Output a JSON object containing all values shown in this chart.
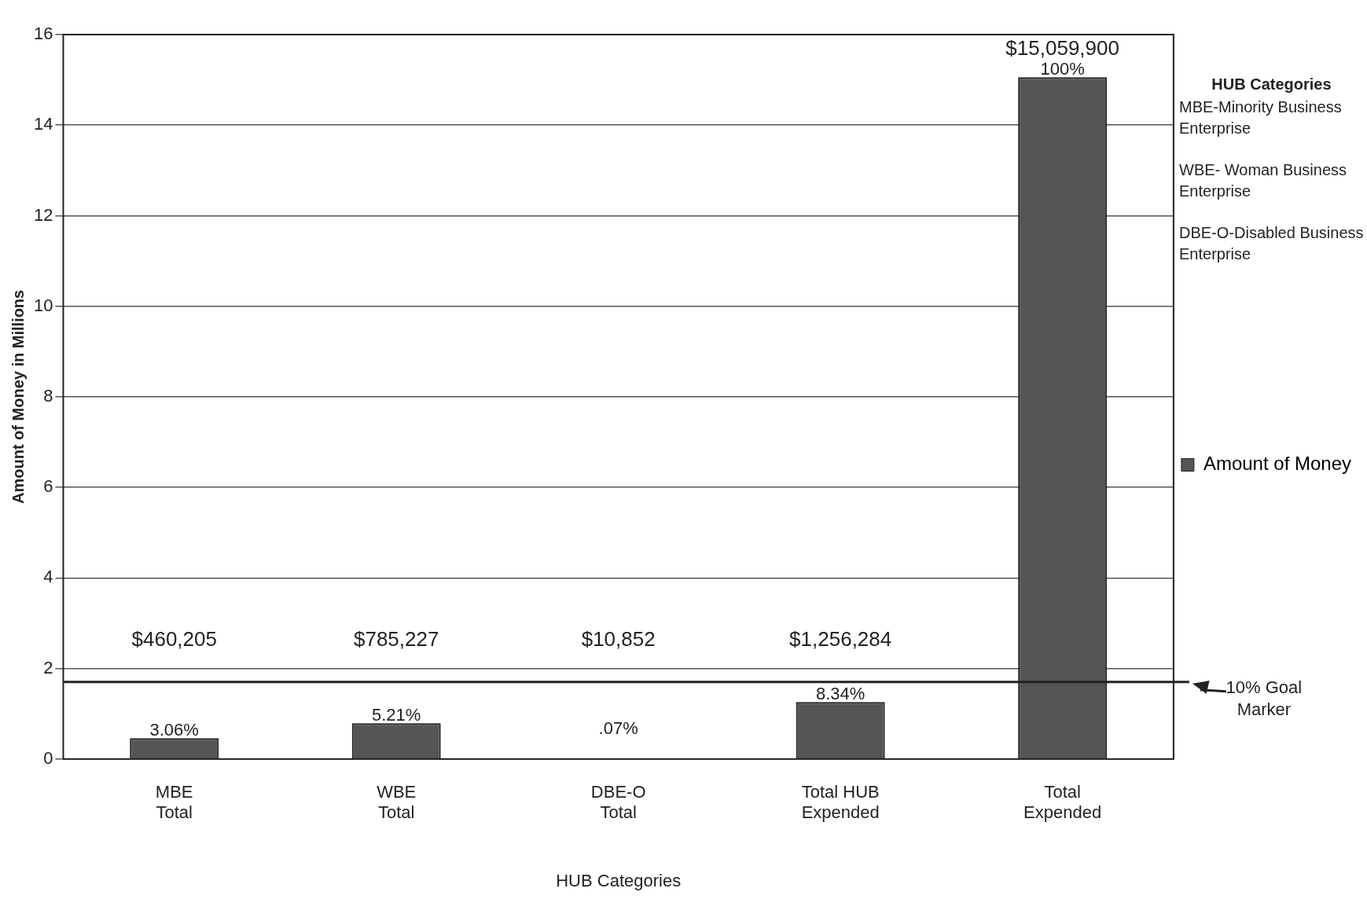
{
  "chart_data": {
    "type": "bar",
    "xlabel": "HUB Categories",
    "ylabel": "Amount of Money in Millions",
    "categories": [
      "MBE Total",
      "WBE Total",
      "DBE-O Total",
      "Total HUB Expended",
      "Total Expended"
    ],
    "series": [
      {
        "name": "Amount of Money",
        "color": "#555555",
        "values": [
          0.46,
          0.79,
          0.01,
          1.26,
          15.06
        ]
      }
    ],
    "ylim": [
      0,
      16
    ],
    "yticks": [
      0,
      2,
      4,
      6,
      8,
      10,
      12,
      14,
      16
    ],
    "grid": "y",
    "legend": "right",
    "ref_lines": [
      {
        "axis": "y",
        "value": 1.7,
        "label": "10% Goal Marker",
        "color": "#222222"
      }
    ],
    "annotations": [
      "$460,205",
      "$785,227",
      "$10,852",
      "$1,256,284",
      "$15,059,900",
      ".07%",
      {
        "text": "3.06%",
        "x": "MBE Total",
        "y": 0.46
      },
      {
        "text": "5.21%",
        "x": "WBE Total",
        "y": 0.79
      },
      {
        "text": "8.34%",
        "x": "Total HUB Expended",
        "y": 1.26
      },
      {
        "text": "100%",
        "x": "Total Expended",
        "y": 15.06
      },
      "HUB Categories",
      "MBE-Minority Business Enterprise",
      "WBE- Woman Business Enterprise",
      "DBE-O-Disabled Business Enterprise"
    ]
  }
}
